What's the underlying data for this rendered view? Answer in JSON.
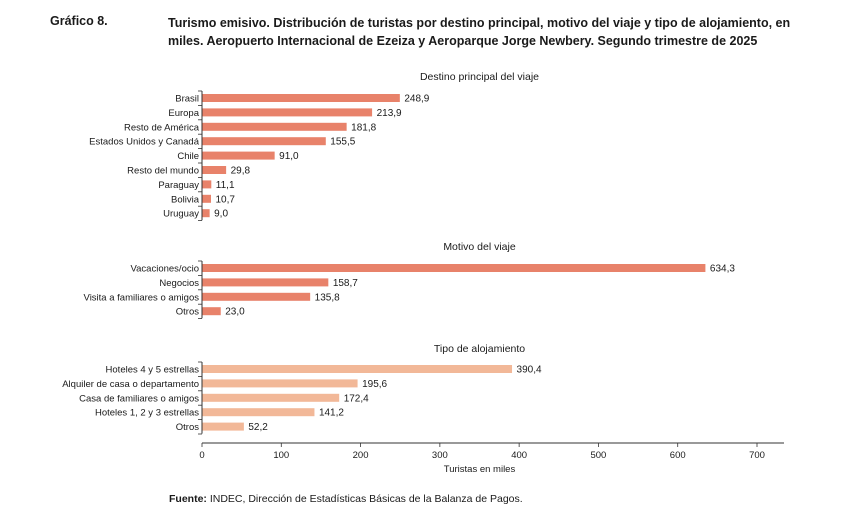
{
  "header": {
    "graphic_number": "Gráfico 8.",
    "title": "Turismo emisivo. Distribución de turistas por destino principal, motivo del viaje y tipo de alojamiento, en miles. Aeropuerto Internacional de Ezeiza y Aeroparque Jorge Newbery. Segundo trimestre de 2025"
  },
  "source": {
    "label": "Fuente:",
    "text": " INDEC, Dirección de Estadísticas Básicas de la Balanza de Pagos."
  },
  "colors": {
    "bar_primary": "#e8826a",
    "bar_secondary": "#f2b898",
    "axis": "#333333"
  },
  "chart_data": {
    "type": "bar",
    "orientation": "horizontal",
    "xlabel": "Turistas en miles",
    "xlim": [
      0,
      700
    ],
    "xticks": [
      0,
      100,
      200,
      300,
      400,
      500,
      600,
      700
    ],
    "grid": false,
    "panels": [
      {
        "title": "Destino principal del viaje",
        "categories": [
          "Brasil",
          "Europa",
          "Resto de América",
          "Estados Unidos y Canadá",
          "Chile",
          "Resto del mundo",
          "Paraguay",
          "Bolivia",
          "Uruguay"
        ],
        "values": [
          248.9,
          213.9,
          181.8,
          155.5,
          91.0,
          29.8,
          11.1,
          10.7,
          9.0
        ],
        "value_labels": [
          "248,9",
          "213,9",
          "181,8",
          "155,5",
          "91,0",
          "29,8",
          "11,1",
          "10,7",
          "9,0"
        ]
      },
      {
        "title": "Motivo del viaje",
        "categories": [
          "Vacaciones/ocio",
          "Negocios",
          "Visita a familiares o amigos",
          "Otros"
        ],
        "values": [
          634.3,
          158.7,
          135.8,
          23.0
        ],
        "value_labels": [
          "634,3",
          "158,7",
          "135,8",
          "23,0"
        ]
      },
      {
        "title": "Tipo de alojamiento",
        "categories": [
          "Hoteles 4 y 5 estrellas",
          "Alquiler de casa o departamento",
          "Casa de familiares o amigos",
          "Hoteles 1, 2 y 3 estrellas",
          "Otros"
        ],
        "values": [
          390.4,
          195.6,
          172.4,
          141.2,
          52.2
        ],
        "value_labels": [
          "390,4",
          "195,6",
          "172,4",
          "141,2",
          "52,2"
        ]
      }
    ]
  }
}
